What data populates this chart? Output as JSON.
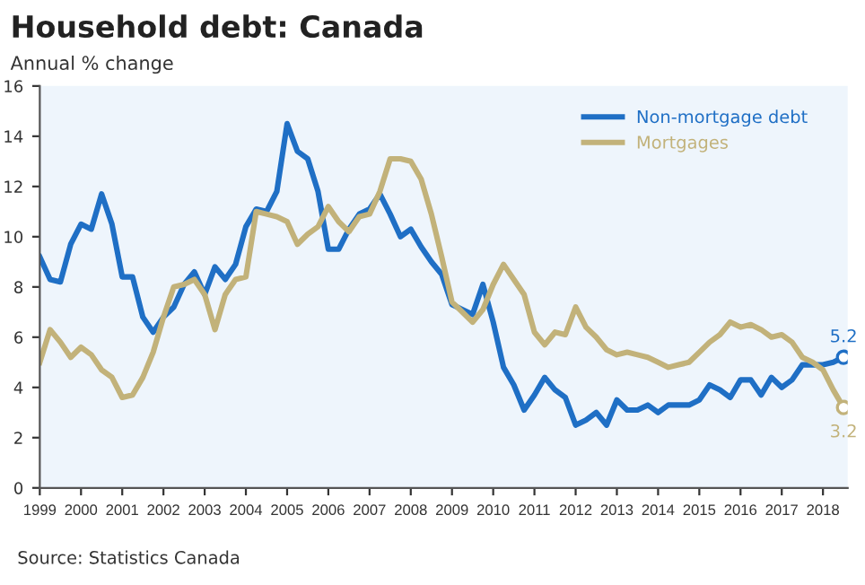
{
  "chart_data": {
    "type": "line",
    "title": "Household debt: Canada",
    "subtitle": "Annual % change",
    "annotations": [
      "Source: Statistics Canada"
    ],
    "x": [
      1999.0,
      1999.25,
      1999.5,
      1999.75,
      2000.0,
      2000.25,
      2000.5,
      2000.75,
      2001.0,
      2001.25,
      2001.5,
      2001.75,
      2002.0,
      2002.25,
      2002.5,
      2002.75,
      2003.0,
      2003.25,
      2003.5,
      2003.75,
      2004.0,
      2004.25,
      2004.5,
      2004.75,
      2005.0,
      2005.25,
      2005.5,
      2005.75,
      2006.0,
      2006.25,
      2006.5,
      2006.75,
      2007.0,
      2007.25,
      2007.5,
      2007.75,
      2008.0,
      2008.25,
      2008.5,
      2008.75,
      2009.0,
      2009.25,
      2009.5,
      2009.75,
      2010.0,
      2010.25,
      2010.5,
      2010.75,
      2011.0,
      2011.25,
      2011.5,
      2011.75,
      2012.0,
      2012.25,
      2012.5,
      2012.75,
      2013.0,
      2013.25,
      2013.5,
      2013.75,
      2014.0,
      2014.25,
      2014.5,
      2014.75,
      2015.0,
      2015.25,
      2015.5,
      2015.75,
      2016.0,
      2016.25,
      2016.5,
      2016.75,
      2017.0,
      2017.25,
      2017.5,
      2017.75,
      2018.0,
      2018.25,
      2018.5
    ],
    "series": [
      {
        "name": "Non-mortgage debt",
        "color": "#1f6fc5",
        "values": [
          9.2,
          8.3,
          8.2,
          9.7,
          10.5,
          10.3,
          11.7,
          10.5,
          8.4,
          8.4,
          6.8,
          6.2,
          6.8,
          7.2,
          8.1,
          8.6,
          7.7,
          8.8,
          8.3,
          8.9,
          10.4,
          11.1,
          11.0,
          11.8,
          14.5,
          13.4,
          13.1,
          11.8,
          9.5,
          9.5,
          10.3,
          10.9,
          11.1,
          11.7,
          10.9,
          10.0,
          10.3,
          9.6,
          9.0,
          8.5,
          7.3,
          7.1,
          6.9,
          8.1,
          6.6,
          4.8,
          4.1,
          3.1,
          3.7,
          4.4,
          3.9,
          3.6,
          2.5,
          2.7,
          3.0,
          2.5,
          3.5,
          3.1,
          3.1,
          3.3,
          3.0,
          3.3,
          3.3,
          3.3,
          3.5,
          4.1,
          3.9,
          3.6,
          4.3,
          4.3,
          3.7,
          4.4,
          4.0,
          4.3,
          4.9,
          4.9,
          4.9,
          5.0,
          5.2
        ],
        "value_labels": [
          null,
          null,
          null,
          null,
          null,
          null,
          null,
          null,
          null,
          null,
          null,
          null,
          null,
          null,
          null,
          null,
          null,
          null,
          null,
          null,
          null,
          null,
          null,
          null,
          null,
          null,
          null,
          null,
          null,
          null,
          null,
          null,
          null,
          null,
          null,
          null,
          null,
          null,
          null,
          null,
          null,
          null,
          null,
          null,
          null,
          null,
          null,
          null,
          null,
          null,
          null,
          null,
          null,
          null,
          null,
          null,
          null,
          null,
          null,
          null,
          null,
          null,
          null,
          null,
          null,
          null,
          null,
          null,
          null,
          null,
          null,
          null,
          null,
          null,
          null,
          null,
          null,
          null,
          "5.2"
        ]
      },
      {
        "name": "Mortgages",
        "color": "#c2b27a",
        "values": [
          5.0,
          6.3,
          5.8,
          5.2,
          5.6,
          5.3,
          4.7,
          4.4,
          3.6,
          3.7,
          4.4,
          5.4,
          6.8,
          8.0,
          8.1,
          8.3,
          7.7,
          6.3,
          7.7,
          8.3,
          8.4,
          11.0,
          10.9,
          10.8,
          10.6,
          9.7,
          10.1,
          10.4,
          11.2,
          10.6,
          10.2,
          10.8,
          10.9,
          11.8,
          13.1,
          13.1,
          13.0,
          12.3,
          10.9,
          9.2,
          7.4,
          7.0,
          6.6,
          7.1,
          8.1,
          8.9,
          8.3,
          7.7,
          6.2,
          5.7,
          6.2,
          6.1,
          7.2,
          6.4,
          6.0,
          5.5,
          5.3,
          5.4,
          5.3,
          5.2,
          5.0,
          4.8,
          4.9,
          5.0,
          5.4,
          5.8,
          6.1,
          6.6,
          6.4,
          6.5,
          6.3,
          6.0,
          6.1,
          5.8,
          5.2,
          5.0,
          4.7,
          3.9,
          3.2
        ],
        "value_labels": [
          null,
          null,
          null,
          null,
          null,
          null,
          null,
          null,
          null,
          null,
          null,
          null,
          null,
          null,
          null,
          null,
          null,
          null,
          null,
          null,
          null,
          null,
          null,
          null,
          null,
          null,
          null,
          null,
          null,
          null,
          null,
          null,
          null,
          null,
          null,
          null,
          null,
          null,
          null,
          null,
          null,
          null,
          null,
          null,
          null,
          null,
          null,
          null,
          null,
          null,
          null,
          null,
          null,
          null,
          null,
          null,
          null,
          null,
          null,
          null,
          null,
          null,
          null,
          null,
          null,
          null,
          null,
          null,
          null,
          null,
          null,
          null,
          null,
          null,
          null,
          null,
          null,
          null,
          "3.2"
        ]
      }
    ],
    "xlim": [
      1999,
      2018.6
    ],
    "xticks": [
      1999,
      2000,
      2001,
      2002,
      2003,
      2004,
      2005,
      2006,
      2007,
      2008,
      2009,
      2010,
      2011,
      2012,
      2013,
      2014,
      2015,
      2016,
      2017,
      2018
    ],
    "ylim": [
      0,
      16
    ],
    "yticks": [
      0,
      2,
      4,
      6,
      8,
      10,
      12,
      14,
      16
    ],
    "grid": false,
    "legend": "top right",
    "line_style": "solid"
  }
}
